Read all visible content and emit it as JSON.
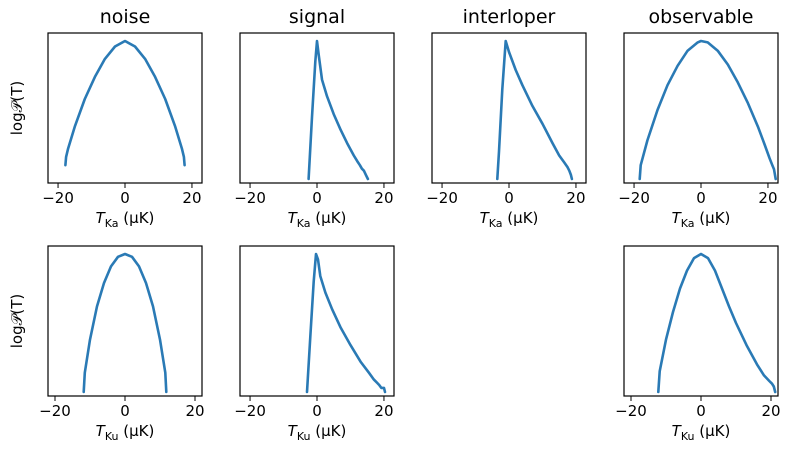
{
  "colors": {
    "series": "#2a7ab5",
    "axis": "#000000"
  },
  "columns": [
    "noise",
    "signal",
    "interloper",
    "observable"
  ],
  "ylabel": "log𝒫(T)",
  "ylabel_rows": [
    0,
    1
  ],
  "chart_data": [
    {
      "type": "line",
      "title": "noise",
      "row": 0,
      "col": 0,
      "xlabel": {
        "main": "T",
        "sub": "Ka",
        "unit": " (μK)"
      },
      "xlim": [
        -23,
        23
      ],
      "xticks": [
        -20,
        0,
        20
      ],
      "xticklabels": [
        "−20",
        "0",
        "20"
      ],
      "yscale": "log",
      "yticks": [],
      "series": [
        {
          "x": [
            -17.8,
            -17.6,
            -17,
            -15,
            -12,
            -9,
            -6,
            -3,
            0,
            3,
            6,
            9,
            12,
            15,
            17,
            17.6,
            17.8
          ],
          "y": [
            0.1,
            0.16,
            0.22,
            0.38,
            0.58,
            0.74,
            0.87,
            0.96,
            1.0,
            0.96,
            0.87,
            0.74,
            0.58,
            0.38,
            0.22,
            0.16,
            0.1
          ]
        }
      ]
    },
    {
      "type": "line",
      "title": "signal",
      "row": 0,
      "col": 1,
      "xlabel": {
        "main": "T",
        "sub": "Ka",
        "unit": " (μK)"
      },
      "xlim": [
        -23,
        23
      ],
      "xticks": [
        -20,
        0,
        20
      ],
      "xticklabels": [
        "−20",
        "0",
        "20"
      ],
      "yscale": "log",
      "yticks": [],
      "series": [
        {
          "x": [
            -2.5,
            -1.5,
            -0.5,
            0,
            0.5,
            1.5,
            3,
            5,
            7,
            9,
            11,
            12,
            12.8,
            13.4,
            14,
            14.6,
            15.2
          ],
          "y": [
            0.0,
            0.45,
            0.85,
            1.0,
            0.9,
            0.72,
            0.6,
            0.47,
            0.36,
            0.26,
            0.17,
            0.13,
            0.1,
            0.075,
            0.06,
            0.03,
            0.0
          ]
        }
      ]
    },
    {
      "type": "line",
      "title": "interloper",
      "row": 0,
      "col": 2,
      "xlabel": {
        "main": "T",
        "sub": "Ka",
        "unit": " (μK)"
      },
      "xlim": [
        -23,
        23
      ],
      "xticks": [
        -20,
        0,
        20
      ],
      "xticklabels": [
        "−20",
        "0",
        "20"
      ],
      "yscale": "log",
      "yticks": [],
      "series": [
        {
          "x": [
            -3.5,
            -3,
            -2,
            -1,
            0,
            2,
            4,
            7,
            10,
            13,
            15,
            16.5,
            17.5,
            18,
            18.5,
            18.8
          ],
          "y": [
            0.0,
            0.2,
            0.65,
            1.0,
            0.92,
            0.79,
            0.68,
            0.53,
            0.4,
            0.26,
            0.17,
            0.12,
            0.085,
            0.06,
            0.03,
            0.0
          ]
        }
      ]
    },
    {
      "type": "line",
      "title": "observable",
      "row": 0,
      "col": 3,
      "xlabel": {
        "main": "T",
        "sub": "Ka",
        "unit": " (μK)"
      },
      "xlim": [
        -23,
        23
      ],
      "xticks": [
        -20,
        0,
        20
      ],
      "xticklabels": [
        "−20",
        "0",
        "20"
      ],
      "yscale": "log",
      "yticks": [],
      "series": [
        {
          "x": [
            -18.3,
            -18,
            -16,
            -13,
            -10,
            -7,
            -4,
            -1,
            0,
            2,
            5,
            8,
            11,
            14,
            17,
            19,
            20.5,
            21.3,
            21.8,
            22.3
          ],
          "y": [
            0.0,
            0.1,
            0.28,
            0.5,
            0.68,
            0.82,
            0.93,
            0.99,
            1.0,
            0.99,
            0.93,
            0.83,
            0.7,
            0.55,
            0.38,
            0.25,
            0.15,
            0.1,
            0.07,
            0.0
          ]
        }
      ]
    },
    {
      "type": "line",
      "title": "",
      "row": 1,
      "col": 0,
      "xlabel": {
        "main": "T",
        "sub": "Ku",
        "unit": " (μK)"
      },
      "xlim": [
        -22,
        22
      ],
      "xticks": [
        -20,
        0,
        20
      ],
      "xticklabels": [
        "−20",
        "0",
        "20"
      ],
      "yscale": "log",
      "yticks": [],
      "series": [
        {
          "x": [
            -11.8,
            -11.5,
            -10,
            -8,
            -6,
            -4,
            -2,
            0,
            2,
            4,
            6,
            8,
            10,
            11.5,
            11.8
          ],
          "y": [
            0.0,
            0.14,
            0.38,
            0.62,
            0.79,
            0.91,
            0.98,
            1.0,
            0.98,
            0.91,
            0.79,
            0.62,
            0.38,
            0.14,
            0.0
          ]
        }
      ]
    },
    {
      "type": "line",
      "title": "",
      "row": 1,
      "col": 1,
      "xlabel": {
        "main": "T",
        "sub": "Ku",
        "unit": " (μK)"
      },
      "xlim": [
        -23,
        23
      ],
      "xticks": [
        -20,
        0,
        20
      ],
      "xticklabels": [
        "−20",
        "0",
        "20"
      ],
      "yscale": "log",
      "yticks": [],
      "series": [
        {
          "x": [
            -3,
            -2,
            -1,
            -0.3,
            0.3,
            1,
            2.5,
            4.5,
            7,
            10,
            13,
            15.5,
            17,
            18,
            18.6,
            19.2,
            20,
            20.3
          ],
          "y": [
            0.0,
            0.4,
            0.8,
            1.0,
            0.96,
            0.84,
            0.72,
            0.6,
            0.47,
            0.34,
            0.22,
            0.14,
            0.09,
            0.065,
            0.05,
            0.03,
            0.03,
            0.0
          ]
        }
      ]
    },
    {
      "type": "line",
      "title": "",
      "row": 1,
      "col": 3,
      "xlabel": {
        "main": "T",
        "sub": "Ku",
        "unit": " (μK)"
      },
      "xlim": [
        -22,
        22
      ],
      "xticks": [
        -20,
        0,
        20
      ],
      "xticklabels": [
        "−20",
        "0",
        "20"
      ],
      "yscale": "log",
      "yticks": [],
      "series": [
        {
          "x": [
            -12.2,
            -11.8,
            -10,
            -8,
            -6,
            -4,
            -2,
            0,
            2,
            4,
            6,
            8,
            10,
            13,
            16,
            18,
            19.5,
            20.3,
            20.8,
            21.2
          ],
          "y": [
            0.0,
            0.15,
            0.38,
            0.58,
            0.75,
            0.88,
            0.97,
            1.0,
            0.97,
            0.88,
            0.75,
            0.62,
            0.5,
            0.34,
            0.2,
            0.12,
            0.08,
            0.06,
            0.04,
            0.0
          ]
        }
      ]
    }
  ]
}
